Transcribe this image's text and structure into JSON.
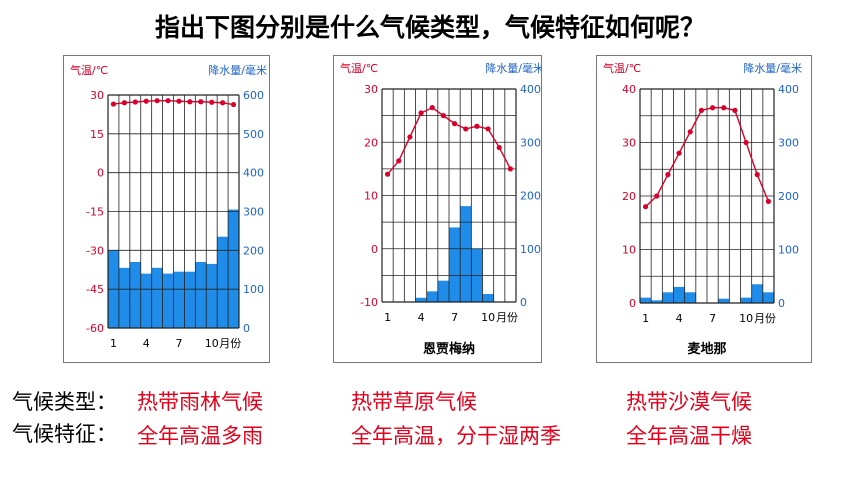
{
  "title": "指出下图分别是什么气候类型，气候特征如何呢？",
  "labels": {
    "type_label": "气候类型：",
    "feature_label": "气候特征："
  },
  "answers": {
    "types": [
      "热带雨林气候",
      "热带草原气候",
      "热带沙漠气候"
    ],
    "features": [
      "全年高温多雨",
      "全年高温，分干湿两季",
      "全年高温干燥"
    ]
  },
  "colors": {
    "temp": "#d8002a",
    "precip": "#1e8ce8",
    "precip_axis": "#1e63c8",
    "answer": "#e4001b"
  },
  "chart_data": [
    {
      "type": "bar+line",
      "title": "",
      "temp_axis_label": "气温/℃",
      "precip_axis_label": "降水量/毫米",
      "x_tick_labels": [
        "1",
        "4",
        "7",
        "10",
        "月份"
      ],
      "categories": [
        "1",
        "2",
        "3",
        "4",
        "5",
        "6",
        "7",
        "8",
        "9",
        "10",
        "11",
        "12"
      ],
      "temp_ticks": [
        "30",
        "15",
        "0",
        "-15",
        "-30",
        "-45",
        "-60"
      ],
      "precip_ticks": [
        "600",
        "500",
        "400",
        "300",
        "200",
        "100",
        "0"
      ],
      "temp_range": [
        -60,
        30
      ],
      "precip_range": [
        0,
        600
      ],
      "temperature": [
        26.5,
        27,
        27.3,
        27.6,
        27.8,
        27.8,
        27.6,
        27.4,
        27.4,
        27.2,
        27,
        26.3
      ],
      "precipitation": [
        200,
        155,
        170,
        140,
        155,
        140,
        145,
        145,
        170,
        165,
        235,
        305
      ],
      "grid": true
    },
    {
      "type": "bar+line",
      "title": "恩贾梅纳",
      "temp_axis_label": "气温/℃",
      "precip_axis_label": "降水量/毫米",
      "x_tick_labels": [
        "1",
        "4",
        "7",
        "10",
        "月份"
      ],
      "categories": [
        "1",
        "2",
        "3",
        "4",
        "5",
        "6",
        "7",
        "8",
        "9",
        "10",
        "11",
        "12"
      ],
      "temp_ticks": [
        "30",
        "20",
        "10",
        "0",
        "-10"
      ],
      "precip_ticks": [
        "400",
        "300",
        "200",
        "100",
        "0"
      ],
      "temp_range": [
        -10,
        30
      ],
      "precip_range": [
        0,
        400
      ],
      "temperature": [
        14,
        16.5,
        21,
        25.5,
        26.5,
        25,
        23.5,
        22.5,
        23,
        22.5,
        19,
        15
      ],
      "precipitation": [
        0,
        0,
        0,
        8,
        20,
        40,
        140,
        180,
        100,
        15,
        0,
        0
      ],
      "grid": true
    },
    {
      "type": "bar+line",
      "title": "麦地那",
      "temp_axis_label": "气温/℃",
      "precip_axis_label": "降水量/毫米",
      "x_tick_labels": [
        "1",
        "4",
        "7",
        "10",
        "月份"
      ],
      "categories": [
        "1",
        "2",
        "3",
        "4",
        "5",
        "6",
        "7",
        "8",
        "9",
        "10",
        "11",
        "12"
      ],
      "temp_ticks": [
        "40",
        "30",
        "20",
        "10",
        "0"
      ],
      "precip_ticks": [
        "400",
        "300",
        "200",
        "100",
        "0"
      ],
      "temp_range": [
        0,
        40
      ],
      "precip_range": [
        0,
        400
      ],
      "temperature": [
        18,
        20,
        24,
        28,
        32,
        36,
        36.5,
        36.5,
        36,
        30,
        24,
        19
      ],
      "precipitation": [
        10,
        5,
        20,
        30,
        20,
        0,
        0,
        8,
        0,
        10,
        35,
        20
      ],
      "grid": true
    }
  ]
}
